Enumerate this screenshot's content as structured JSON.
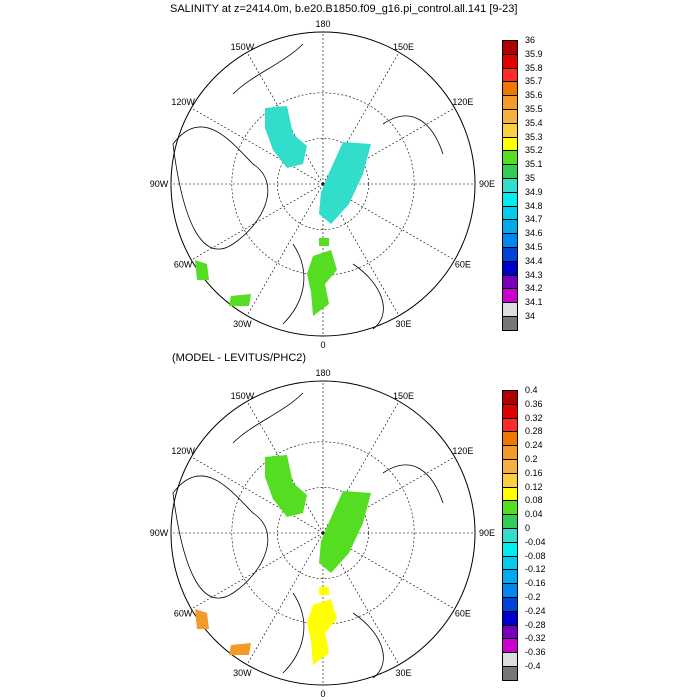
{
  "panels": [
    {
      "id": "top",
      "title": "SALINITY at z=2414.0m, b.e20.B1850.f09_g16.pi_control.all.141 [9-23]",
      "colorbar_labels": [
        "36",
        "35.9",
        "35.8",
        "35.7",
        "35.6",
        "35.5",
        "35.4",
        "35.3",
        "35.2",
        "35.1",
        "35",
        "34.9",
        "34.8",
        "34.7",
        "34.6",
        "34.5",
        "34.4",
        "34.3",
        "34.2",
        "34.1",
        "34"
      ],
      "colorbar_colors": [
        "#b00000",
        "#e00000",
        "#ff2a2a",
        "#f07800",
        "#f39a2a",
        "#f6b040",
        "#fbd040",
        "#ffff00",
        "#55dd22",
        "#33cc55",
        "#33ddcc",
        "#00eeee",
        "#00ccee",
        "#00aaee",
        "#0088ee",
        "#0044dd",
        "#0000cc",
        "#7700bb",
        "#cc00cc",
        "#dddddd",
        "#777777"
      ],
      "field_colors": {
        "a": "#33ddcc",
        "b": "#33ddcc",
        "c": "#55dd22",
        "d": "#55dd22",
        "e": "#55dd22",
        "f": "#55dd22"
      }
    },
    {
      "id": "bottom",
      "title": "(MODEL - LEVITUS/PHC2)",
      "colorbar_labels": [
        "0.4",
        "0.36",
        "0.32",
        "0.28",
        "0.24",
        "0.2",
        "0.16",
        "0.12",
        "0.08",
        "0.04",
        "0",
        "-0.04",
        "-0.08",
        "-0.12",
        "-0.16",
        "-0.2",
        "-0.24",
        "-0.28",
        "-0.32",
        "-0.36",
        "-0.4"
      ],
      "colorbar_colors": [
        "#b00000",
        "#e00000",
        "#ff2a2a",
        "#f07800",
        "#f39a2a",
        "#f6b040",
        "#fbd040",
        "#ffff00",
        "#55dd22",
        "#33cc55",
        "#33ddcc",
        "#00eeee",
        "#00ccee",
        "#00aaee",
        "#0088ee",
        "#0044dd",
        "#0000cc",
        "#7700bb",
        "#cc00cc",
        "#dddddd",
        "#777777"
      ],
      "field_colors": {
        "a": "#55dd22",
        "b": "#55dd22",
        "c": "#ffff00",
        "d": "#ffff00",
        "e": "#f39a2a",
        "f": "#f39a2a"
      }
    }
  ],
  "longitude_labels": {
    "top": "180",
    "right": "90E",
    "bottom": "0",
    "left": "90W",
    "ul": "150W",
    "ur": "150E",
    "ml": "120W",
    "mr": "120E",
    "ll": "60W",
    "lr": "60E",
    "bl": "30W",
    "br": "30E"
  }
}
